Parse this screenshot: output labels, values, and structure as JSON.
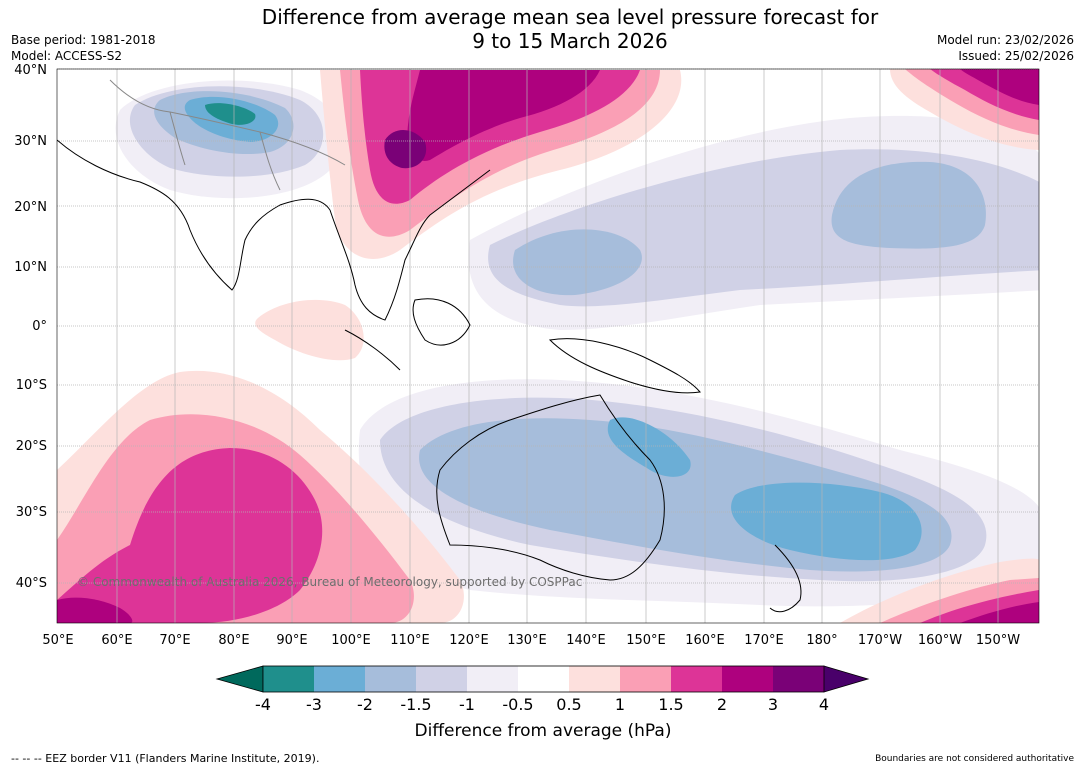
{
  "header": {
    "title_line1": "Difference from average mean sea level pressure forecast for",
    "title_line2": "9 to 15 March 2026",
    "base_period": "Base period: 1981-2018",
    "model": "Model: ACCESS-S2",
    "model_run": "Model run: 23/02/2026",
    "issued": "Issued: 25/02/2026"
  },
  "map": {
    "lat_labels": [
      "40°N",
      "30°N",
      "20°N",
      "10°N",
      "0°",
      "10°S",
      "20°S",
      "30°S",
      "40°S"
    ],
    "lon_labels": [
      "50°E",
      "60°E",
      "70°E",
      "80°E",
      "90°E",
      "100°E",
      "110°E",
      "120°E",
      "130°E",
      "140°E",
      "150°E",
      "160°E",
      "170°E",
      "180°",
      "170°W",
      "160°W",
      "150°W"
    ],
    "copyright": "© Commonwealth of Australia 2026, Bureau of Meteorology, supported by COSPPac"
  },
  "colorbar": {
    "tick_labels": [
      "-4",
      "-3",
      "-2",
      "-1.5",
      "-1",
      "-0.5",
      "0.5",
      "1",
      "1.5",
      "2",
      "3",
      "4"
    ],
    "colors": [
      "#1f8f8c",
      "#6baed6",
      "#a6bddb",
      "#d0d1e6",
      "#f1eef6",
      "#ffffff",
      "#fde0dd",
      "#fa9fb5",
      "#dd3497",
      "#ae017e",
      "#7a0177"
    ],
    "under_color": "#00695c",
    "over_color": "#49006a",
    "title": "Difference from average (hPa)"
  },
  "footer": {
    "eez_note": "--  --  -- EEZ border V11 (Flanders Marine Institute, 2019).",
    "boundaries_note": "Boundaries are not considered authoritative"
  }
}
